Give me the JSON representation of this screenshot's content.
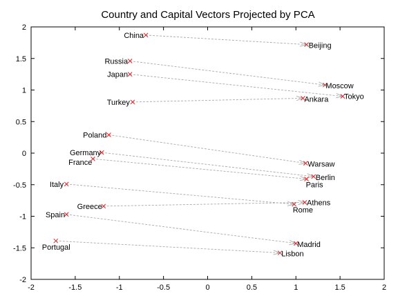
{
  "chart_data": {
    "type": "scatter",
    "title": "Country and Capital Vectors Projected by PCA",
    "xlabel": "",
    "ylabel": "",
    "xlim": [
      -2,
      2
    ],
    "ylim": [
      -2,
      2
    ],
    "x_ticks": [
      -2,
      -1.5,
      -1,
      -0.5,
      0,
      0.5,
      1,
      1.5,
      2
    ],
    "x_tick_labels": [
      "-2",
      "-1.5",
      "-1",
      "-0.5",
      "0",
      "0.5",
      "1",
      "1.5",
      "2"
    ],
    "y_ticks": [
      -2,
      -1.5,
      -1,
      -0.5,
      0,
      0.5,
      1,
      1.5,
      2
    ],
    "y_tick_labels": [
      "-2",
      "-1.5",
      "-1",
      "-0.5",
      "0",
      "0.5",
      "1",
      "1.5",
      "2"
    ],
    "grid": false,
    "colors": {
      "marker": "#e0262b",
      "arrow": "#a9a9a9",
      "frame": "#000000"
    },
    "pairs": [
      {
        "country": {
          "name": "China",
          "x": -0.7,
          "y": 1.87
        },
        "capital": {
          "name": "Beijing",
          "x": 1.12,
          "y": 1.72
        }
      },
      {
        "country": {
          "name": "Russia",
          "x": -0.88,
          "y": 1.46
        },
        "capital": {
          "name": "Moscow",
          "x": 1.33,
          "y": 1.08
        }
      },
      {
        "country": {
          "name": "Japan",
          "x": -0.88,
          "y": 1.25
        },
        "capital": {
          "name": "Tokyo",
          "x": 1.53,
          "y": 0.9
        }
      },
      {
        "country": {
          "name": "Turkey",
          "x": -0.85,
          "y": 0.81
        },
        "capital": {
          "name": "Ankara",
          "x": 1.08,
          "y": 0.87
        }
      },
      {
        "country": {
          "name": "Poland",
          "x": -1.12,
          "y": 0.29
        },
        "capital": {
          "name": "Warsaw",
          "x": 1.11,
          "y": -0.16
        }
      },
      {
        "country": {
          "name": "Germany",
          "x": -1.2,
          "y": 0.01
        },
        "capital": {
          "name": "Berlin",
          "x": 1.2,
          "y": -0.37
        }
      },
      {
        "country": {
          "name": "France",
          "x": -1.3,
          "y": -0.09
        },
        "capital": {
          "name": "Paris",
          "x": 1.12,
          "y": -0.41
        }
      },
      {
        "country": {
          "name": "Italy",
          "x": -1.6,
          "y": -0.49
        },
        "capital": {
          "name": "Rome",
          "x": 0.98,
          "y": -0.81
        }
      },
      {
        "country": {
          "name": "Greece",
          "x": -1.18,
          "y": -0.84
        },
        "capital": {
          "name": "Athens",
          "x": 1.1,
          "y": -0.78
        }
      },
      {
        "country": {
          "name": "Spain",
          "x": -1.6,
          "y": -0.97
        },
        "capital": {
          "name": "Madrid",
          "x": 1.0,
          "y": -1.43
        }
      },
      {
        "country": {
          "name": "Portugal",
          "x": -1.72,
          "y": -1.39
        },
        "capital": {
          "name": "Lisbon",
          "x": 0.82,
          "y": -1.58
        }
      }
    ]
  }
}
